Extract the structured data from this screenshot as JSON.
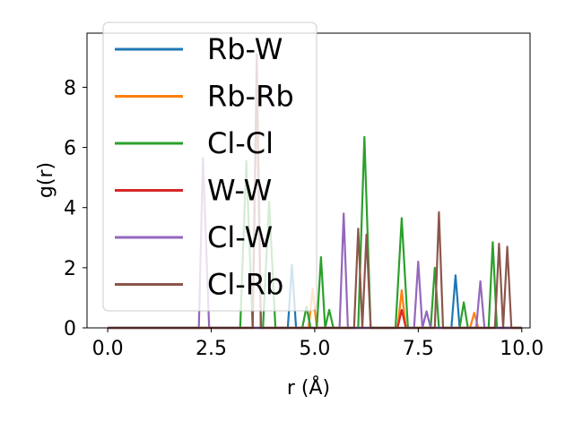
{
  "chart_data": {
    "type": "line",
    "xlabel": "r (Å)",
    "ylabel": "g(r)",
    "xlim": [
      -0.5,
      10.2
    ],
    "ylim": [
      0,
      9.8
    ],
    "x_ticks": [
      0.0,
      2.5,
      5.0,
      7.5,
      10.0
    ],
    "x_tick_labels": [
      "0.0",
      "2.5",
      "5.0",
      "7.5",
      "10.0"
    ],
    "y_ticks": [
      0,
      2,
      4,
      6,
      8
    ],
    "y_tick_labels": [
      "0",
      "2",
      "4",
      "6",
      "8"
    ],
    "grid": false,
    "legend_position": "upper left",
    "series": [
      {
        "name": "Rb-W",
        "color": "#1f77b4",
        "x": [
          0,
          4.35,
          4.45,
          4.55,
          4.65,
          8.3,
          8.4,
          8.5,
          10.0
        ],
        "y": [
          0,
          0,
          2.1,
          0,
          0,
          0,
          1.75,
          0,
          0
        ]
      },
      {
        "name": "Rb-Rb",
        "color": "#ff7f0e",
        "x": [
          0,
          4.85,
          4.95,
          5.05,
          7.0,
          7.1,
          7.2,
          8.75,
          8.85,
          8.95,
          10.0
        ],
        "y": [
          0,
          0,
          1.3,
          0,
          0,
          1.25,
          0,
          0,
          0.5,
          0,
          0
        ]
      },
      {
        "name": "Cl-Cl",
        "color": "#2ca02c",
        "x": [
          0,
          3.2,
          3.35,
          3.5,
          3.75,
          3.9,
          4.05,
          4.7,
          4.8,
          4.9,
          5.05,
          5.15,
          5.25,
          5.35,
          5.45,
          6.05,
          6.2,
          6.35,
          6.95,
          7.1,
          7.25,
          7.8,
          7.9,
          8.0,
          8.5,
          8.6,
          8.7,
          9.2,
          9.3,
          9.4,
          10.0
        ],
        "y": [
          0,
          0,
          5.55,
          0,
          0,
          4.2,
          0,
          0,
          0.7,
          0,
          0,
          2.35,
          0,
          0.6,
          0,
          0,
          6.35,
          0,
          0,
          3.65,
          0,
          0,
          2.0,
          0,
          0,
          0.85,
          0,
          0,
          2.85,
          0,
          0
        ]
      },
      {
        "name": "W-W",
        "color": "#d62728",
        "x": [
          0,
          3.5,
          3.6,
          3.7,
          7.0,
          7.1,
          7.2,
          10.0
        ],
        "y": [
          0,
          0,
          8.3,
          0,
          0,
          0.6,
          0,
          0
        ]
      },
      {
        "name": "Cl-W",
        "color": "#9467bd",
        "x": [
          0,
          2.2,
          2.3,
          2.45,
          5.6,
          5.7,
          5.8,
          7.4,
          7.5,
          7.6,
          7.7,
          7.8,
          7.9,
          8.9,
          9.0,
          9.1,
          10.0
        ],
        "y": [
          0,
          0,
          5.65,
          0,
          0,
          3.8,
          0,
          0,
          2.2,
          0,
          0.55,
          0,
          0,
          0,
          1.55,
          0,
          0
        ]
      },
      {
        "name": "Cl-Rb",
        "color": "#8c564b",
        "x": [
          0,
          3.5,
          3.6,
          3.7,
          5.95,
          6.05,
          6.15,
          6.25,
          6.35,
          7.9,
          8.0,
          8.1,
          9.35,
          9.45,
          9.55,
          9.65,
          9.75,
          10.0
        ],
        "y": [
          0,
          0,
          9.1,
          0,
          0,
          3.3,
          0,
          3.1,
          0,
          0,
          3.85,
          0,
          0,
          2.8,
          0,
          2.7,
          0,
          0
        ]
      }
    ]
  }
}
